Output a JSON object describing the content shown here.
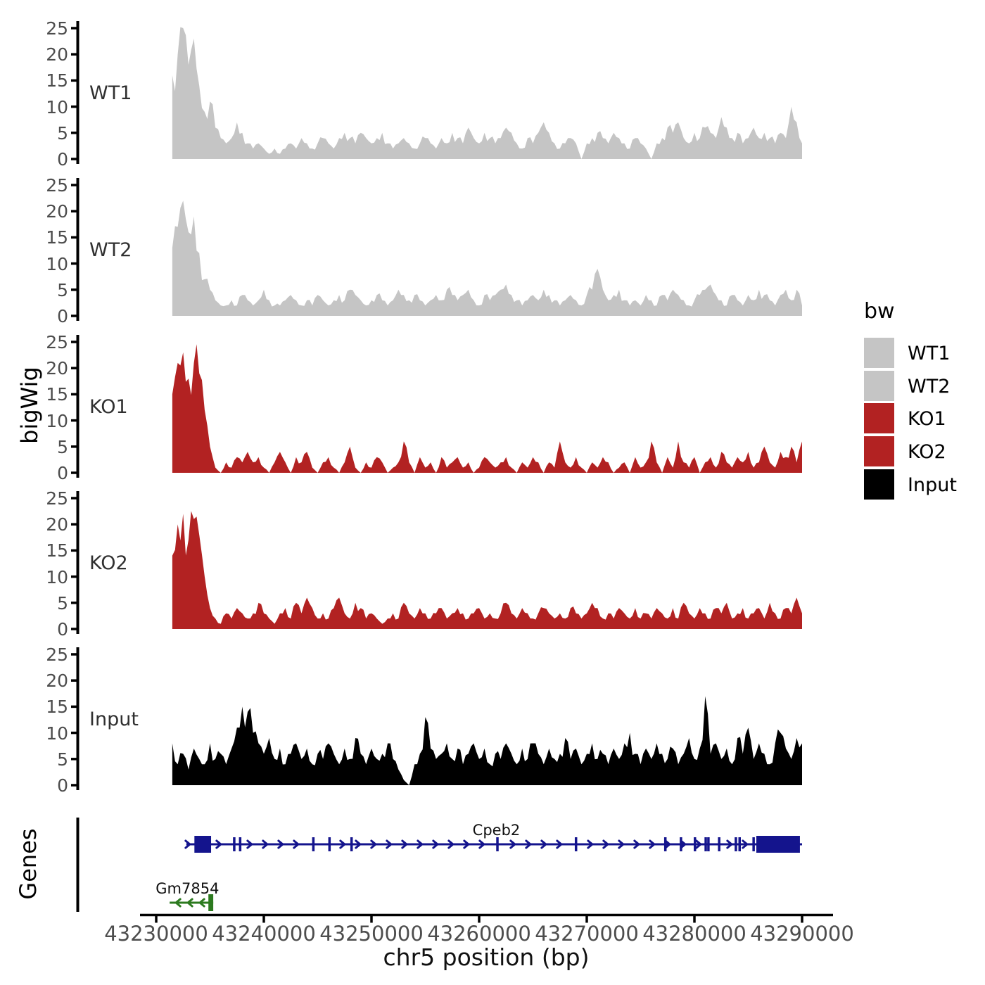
{
  "figure": {
    "background": "#ffffff"
  },
  "chart_data": {
    "type": "area",
    "title": "",
    "xlabel": "chr5 position (bp)",
    "ylabel": "bigWig",
    "genes_axis_label": "Genes",
    "x_axis": {
      "chrom": "chr5",
      "unit": "bp",
      "tick_values": [
        43230000,
        43240000,
        43250000,
        43260000,
        43270000,
        43280000,
        43290000
      ],
      "tick_labels": [
        "43230000",
        "43240000",
        "43250000",
        "43260000",
        "43270000",
        "43280000",
        "43290000"
      ],
      "range_bp": [
        43227000,
        43293000
      ],
      "data_start_bp": 43231500,
      "data_step_bp": 500
    },
    "y_axis": {
      "ticks": [
        0,
        5,
        10,
        15,
        20,
        25
      ],
      "range": [
        0,
        25
      ]
    },
    "series": [
      {
        "name": "WT1",
        "color": "#C5C5C5",
        "values": [
          16,
          20,
          25,
          18,
          23,
          14,
          9,
          11,
          6,
          4,
          3,
          4,
          7,
          5,
          3,
          2,
          3,
          2,
          1,
          2,
          1,
          2,
          3,
          2,
          4,
          3,
          2,
          3,
          4,
          3,
          2,
          4,
          5,
          4,
          3,
          5,
          4,
          3,
          4,
          5,
          3,
          2,
          3,
          4,
          3,
          2,
          3,
          4,
          3,
          2,
          4,
          3,
          5,
          4,
          3,
          6,
          4,
          3,
          5,
          4,
          3,
          4,
          6,
          5,
          3,
          2,
          4,
          3,
          5,
          7,
          5,
          3,
          2,
          3,
          4,
          3,
          0,
          3,
          4,
          5,
          4,
          3,
          5,
          4,
          3,
          2,
          4,
          3,
          2,
          0,
          3,
          4,
          6,
          5,
          7,
          4,
          3,
          5,
          4,
          6,
          5,
          4,
          8,
          6,
          4,
          5,
          3,
          4,
          6,
          4,
          5,
          4,
          3,
          5,
          4,
          10,
          7,
          3
        ]
      },
      {
        "name": "WT2",
        "color": "#C5C5C5",
        "values": [
          13,
          17,
          22,
          16,
          19,
          12,
          7,
          5,
          3,
          2,
          2,
          3,
          2,
          4,
          3,
          2,
          3,
          5,
          3,
          2,
          2,
          3,
          4,
          3,
          2,
          3,
          2,
          4,
          3,
          2,
          3,
          4,
          3,
          5,
          4,
          3,
          2,
          3,
          4,
          3,
          2,
          3,
          5,
          4,
          3,
          4,
          3,
          2,
          3,
          4,
          3,
          5,
          4,
          3,
          4,
          5,
          3,
          2,
          4,
          3,
          4,
          5,
          6,
          4,
          3,
          2,
          3,
          4,
          3,
          5,
          4,
          3,
          2,
          3,
          4,
          3,
          2,
          4,
          5,
          9,
          5,
          3,
          4,
          5,
          3,
          2,
          3,
          2,
          4,
          3,
          2,
          4,
          3,
          5,
          4,
          3,
          2,
          3,
          4,
          5,
          6,
          4,
          3,
          2,
          4,
          3,
          2,
          4,
          3,
          5,
          4,
          3,
          2,
          4,
          5,
          3,
          5,
          2
        ]
      },
      {
        "name": "KO1",
        "color": "#B22222",
        "values": [
          15,
          21,
          23,
          18,
          21,
          19,
          12,
          5,
          1,
          0,
          2,
          1,
          3,
          2,
          4,
          2,
          3,
          1,
          0,
          2,
          4,
          2,
          0,
          3,
          2,
          4,
          1,
          0,
          2,
          3,
          1,
          0,
          2,
          5,
          1,
          0,
          2,
          1,
          3,
          2,
          0,
          1,
          2,
          6,
          2,
          0,
          3,
          1,
          2,
          0,
          3,
          1,
          2,
          3,
          1,
          2,
          0,
          1,
          3,
          2,
          1,
          2,
          3,
          1,
          0,
          2,
          1,
          3,
          2,
          0,
          2,
          1,
          6,
          2,
          1,
          3,
          1,
          0,
          2,
          1,
          3,
          2,
          0,
          1,
          2,
          0,
          3,
          1,
          2,
          6,
          2,
          0,
          3,
          1,
          6,
          2,
          1,
          3,
          0,
          2,
          3,
          1,
          4,
          2,
          1,
          3,
          2,
          4,
          1,
          2,
          5,
          2,
          1,
          4,
          3,
          5,
          2,
          6
        ]
      },
      {
        "name": "KO2",
        "color": "#B22222",
        "values": [
          14,
          20,
          22,
          17,
          21,
          18,
          10,
          4,
          2,
          1,
          3,
          2,
          4,
          3,
          2,
          3,
          5,
          3,
          2,
          1,
          3,
          4,
          2,
          5,
          3,
          6,
          4,
          2,
          3,
          2,
          4,
          6,
          3,
          2,
          5,
          4,
          2,
          3,
          2,
          1,
          2,
          3,
          2,
          5,
          3,
          2,
          4,
          3,
          2,
          3,
          4,
          2,
          3,
          4,
          3,
          2,
          3,
          4,
          2,
          3,
          2,
          3,
          5,
          3,
          2,
          4,
          3,
          2,
          3,
          4,
          3,
          2,
          3,
          2,
          4,
          3,
          2,
          3,
          5,
          4,
          2,
          3,
          2,
          4,
          3,
          2,
          4,
          2,
          3,
          2,
          4,
          3,
          2,
          4,
          2,
          5,
          3,
          2,
          4,
          3,
          2,
          4,
          3,
          5,
          2,
          3,
          4,
          2,
          3,
          4,
          2,
          5,
          3,
          2,
          4,
          3,
          6,
          3
        ]
      },
      {
        "name": "Input",
        "color": "#000000",
        "values": [
          8,
          4,
          6,
          3,
          7,
          5,
          4,
          8,
          5,
          6,
          4,
          7,
          11,
          15,
          14,
          10,
          8,
          6,
          9,
          5,
          7,
          4,
          6,
          8,
          5,
          7,
          4,
          6,
          5,
          8,
          6,
          4,
          7,
          5,
          9,
          6,
          4,
          7,
          5,
          6,
          8,
          5,
          3,
          1,
          0,
          4,
          6,
          13,
          7,
          5,
          6,
          8,
          5,
          7,
          4,
          6,
          8,
          5,
          7,
          4,
          6,
          5,
          8,
          6,
          4,
          7,
          5,
          8,
          6,
          4,
          7,
          5,
          6,
          9,
          5,
          7,
          4,
          6,
          8,
          5,
          6,
          4,
          7,
          5,
          8,
          10,
          6,
          4,
          7,
          5,
          8,
          6,
          5,
          7,
          4,
          6,
          9,
          5,
          7,
          17,
          6,
          8,
          5,
          7,
          4,
          9,
          6,
          11,
          5,
          8,
          6,
          4,
          8,
          10,
          7,
          5,
          9,
          8
        ]
      }
    ],
    "genes": [
      {
        "name": "Cpeb2",
        "strand": "+",
        "color": "#14148D",
        "start_bp": 43232800,
        "end_bp": 43290000,
        "exon_boxes": [
          [
            43233550,
            43235100
          ],
          [
            43285750,
            43289800
          ]
        ],
        "exon_ticks": [
          43237250,
          43237800,
          43244600,
          43246100,
          43248150,
          43261700,
          43269000,
          43277300,
          43278750,
          43280050,
          43281050,
          43281300,
          43282300,
          43283850,
          43284200,
          43285500
        ],
        "label_bp": 43261600
      },
      {
        "name": "Gm7854",
        "strand": "-",
        "color": "#2C7A1F",
        "start_bp": 43231250,
        "end_bp": 43235300,
        "exon_boxes": [
          [
            43234850,
            43235300
          ]
        ],
        "exon_ticks": [],
        "label_bp": 43232900
      }
    ]
  },
  "legend": {
    "title": "bw",
    "items": [
      {
        "label": "WT1",
        "color": "#C5C5C5"
      },
      {
        "label": "WT2",
        "color": "#C5C5C5"
      },
      {
        "label": "KO1",
        "color": "#B22222"
      },
      {
        "label": "KO2",
        "color": "#B22222"
      },
      {
        "label": "Input",
        "color": "#000000"
      }
    ]
  }
}
